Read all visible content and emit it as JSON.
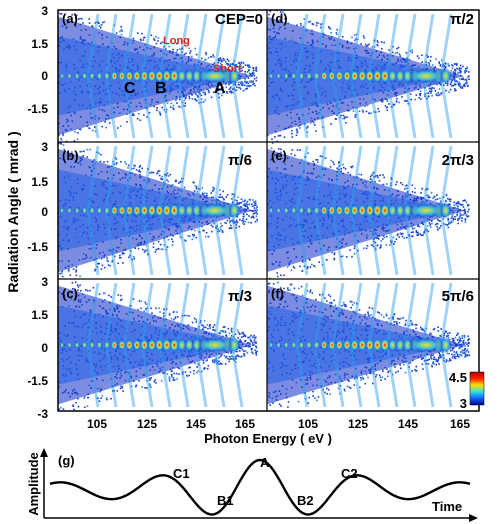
{
  "chart_data": [
    {
      "type": "heatmap",
      "description_type": "multi-panel spectrogram",
      "xlabel": "Photon Energy ( eV )",
      "ylabel": "Radiation Angle ( mrad )",
      "x_ticks": [
        "105",
        "125",
        "145",
        "165",
        "105",
        "125",
        "145",
        "165"
      ],
      "y_ticks_top": [
        "3",
        "1.5",
        "0",
        "-1.5"
      ],
      "y_ticks_mid": [
        "3",
        "1.5",
        "0",
        "-1.5"
      ],
      "y_ticks_bot": [
        "3",
        "1.5",
        "0",
        "-1.5",
        "-3"
      ],
      "xlim": [
        90,
        170
      ],
      "ylim": [
        -3,
        3
      ],
      "colorbar": {
        "max": "4.5",
        "min": "3"
      },
      "panels": [
        {
          "id": "(a)",
          "cep": "CEP=0",
          "annotations": {
            "long": "Long",
            "short": "Short",
            "c": "C",
            "b": "B",
            "a": "A"
          }
        },
        {
          "id": "(b)",
          "cep": "π/6"
        },
        {
          "id": "(c)",
          "cep": "π/3"
        },
        {
          "id": "(d)",
          "cep": "π/2"
        },
        {
          "id": "(e)",
          "cep": "2π/3"
        },
        {
          "id": "(f)",
          "cep": "5π/6"
        }
      ]
    },
    {
      "type": "line",
      "panel": "(g)",
      "ylabel": "Amplitude",
      "xlabel": "Time",
      "point_labels": [
        "C1",
        "B1",
        "A",
        "B2",
        "C2"
      ]
    }
  ]
}
